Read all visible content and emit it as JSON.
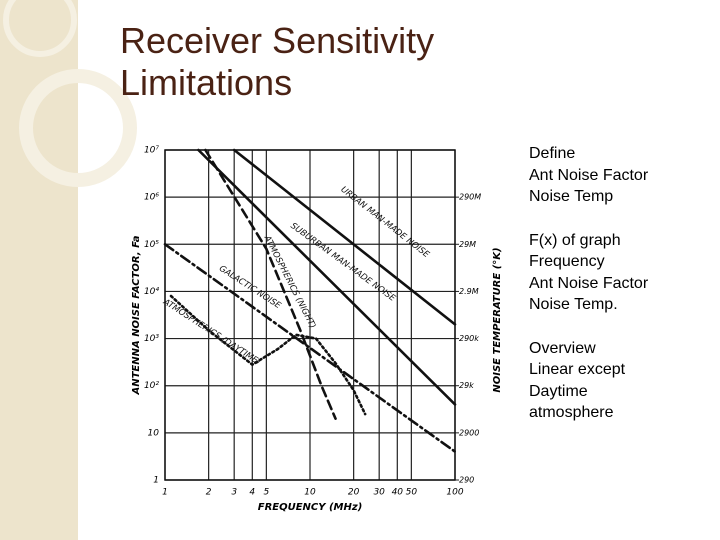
{
  "slide": {
    "title": "Receiver Sensitivity Limitations",
    "notes": [
      [
        "Define",
        "Ant Noise Factor",
        "Noise Temp"
      ],
      [
        "F(x) of graph",
        "Frequency",
        "Ant Noise Factor",
        "Noise Temp."
      ],
      [
        "Overview",
        "Linear except",
        "Daytime",
        "atmosphere"
      ]
    ]
  },
  "chart_data": {
    "type": "line",
    "xlabel": "FREQUENCY (MHz)",
    "ylabel": "ANTENNA NOISE FACTOR, Fa",
    "y2label": "NOISE TEMPERATURE (°K)",
    "xlog": true,
    "ylog": true,
    "grid": true,
    "color": "#111111",
    "xlim": [
      1,
      100
    ],
    "xticks": [
      1,
      2,
      3,
      4,
      5,
      10,
      20,
      30,
      40,
      50,
      100
    ],
    "ylim": [
      1,
      10000000
    ],
    "yticks": [
      1,
      10,
      {
        "value": 100,
        "label": "10²"
      },
      {
        "value": 1000,
        "label": "10³"
      },
      {
        "value": 10000,
        "label": "10⁴"
      },
      {
        "value": 100000,
        "label": "10⁵"
      },
      {
        "value": 1000000,
        "label": "10⁶"
      },
      {
        "value": 10000000,
        "label": "10⁷"
      }
    ],
    "y2lim": [
      290,
      2900000000
    ],
    "y2ticks": [
      290,
      2900,
      {
        "value": 29000,
        "label": "29k"
      },
      {
        "value": 290000,
        "label": "290k"
      },
      {
        "value": 2900000,
        "label": "2.9M"
      },
      {
        "value": 29000000,
        "label": "29M"
      },
      {
        "value": 290000000,
        "label": "290M"
      }
    ],
    "series": [
      {
        "name": "URBAN MAN-MADE NOISE",
        "style": "solid",
        "x": [
          3,
          100
        ],
        "values": [
          10000000,
          2000
        ]
      },
      {
        "name": "SUBURBAN MAN-MADE NOISE",
        "style": "solid",
        "x": [
          1.7,
          100
        ],
        "values": [
          10000000,
          40
        ]
      },
      {
        "name": "ATMOSPHERICS (NIGHT)",
        "style": "dashed",
        "x": [
          1.9,
          5,
          8.5,
          12,
          15
        ],
        "values": [
          10000000,
          80000,
          1600,
          100,
          20
        ]
      },
      {
        "name": "GALACTIC NOISE",
        "style": "dashdot",
        "x": [
          1,
          100
        ],
        "values": [
          100000,
          4
        ]
      },
      {
        "name": "ATMOSPHERICS (DAYTIME)",
        "style": "dotted",
        "x": [
          1.1,
          2,
          4,
          6,
          8,
          11,
          15,
          20,
          24
        ],
        "values": [
          8000,
          1500,
          280,
          600,
          1200,
          1000,
          300,
          80,
          25
        ]
      }
    ]
  }
}
